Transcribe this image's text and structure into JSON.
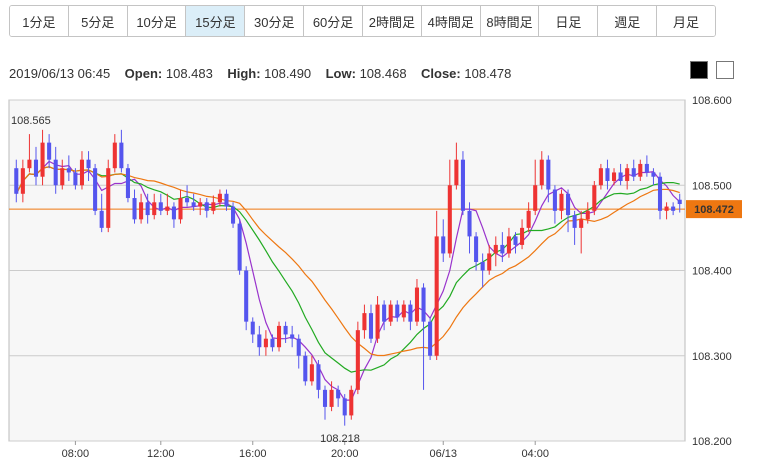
{
  "timeframes": {
    "items": [
      "1分足",
      "5分足",
      "10分足",
      "15分足",
      "30分足",
      "60分足",
      "2時間足",
      "4時間足",
      "8時間足",
      "日足",
      "週足",
      "月足"
    ],
    "active": 3
  },
  "ohlc": {
    "datetime": "2019/06/13 06:45",
    "open_label": "Open:",
    "open": "108.483",
    "high_label": "High:",
    "high": "108.490",
    "low_label": "Low:",
    "low": "108.468",
    "close_label": "Close:",
    "close": "108.478"
  },
  "colors": {
    "up": "#ee3333",
    "down": "#5555ee",
    "ma_fast": "#9933cc",
    "ma_mid": "#22aa22",
    "ma_slow": "#ee7711",
    "current": "#ee7711",
    "grid": "#cccccc",
    "plot_bg": "#f7f7f7"
  },
  "chart_data": {
    "type": "candlestick",
    "y_ticks": [
      108.6,
      108.5,
      108.4,
      108.3,
      108.2
    ],
    "y_tick_labels": [
      "108.600",
      "108.500",
      "108.400",
      "108.300",
      "108.200"
    ],
    "ylim": [
      108.2,
      108.6
    ],
    "x_tick_labels": [
      "08:00",
      "12:00",
      "16:00",
      "20:00",
      "06/13",
      "04:00"
    ],
    "max_label": "108.565",
    "min_label": "108.218",
    "current_price": 108.472,
    "current_price_label": "108.472",
    "candles": [
      [
        108.52,
        108.49,
        108.53,
        108.48
      ],
      [
        108.49,
        108.52,
        108.53,
        108.48
      ],
      [
        108.52,
        108.53,
        108.56,
        108.515
      ],
      [
        108.53,
        108.51,
        108.545,
        108.5
      ],
      [
        108.51,
        108.55,
        108.565,
        108.5
      ],
      [
        108.55,
        108.53,
        108.56,
        108.52
      ],
      [
        108.53,
        108.5,
        108.545,
        108.49
      ],
      [
        108.5,
        108.52,
        108.53,
        108.495
      ],
      [
        108.52,
        108.515,
        108.535,
        108.505
      ],
      [
        108.515,
        108.5,
        108.52,
        108.495
      ],
      [
        108.5,
        108.53,
        108.54,
        108.495
      ],
      [
        108.53,
        108.52,
        108.54,
        108.505
      ],
      [
        108.52,
        108.47,
        108.525,
        108.465
      ],
      [
        108.47,
        108.45,
        108.49,
        108.445
      ],
      [
        108.45,
        108.52,
        108.53,
        108.445
      ],
      [
        108.52,
        108.55,
        108.56,
        108.515
      ],
      [
        108.55,
        108.52,
        108.565,
        108.515
      ],
      [
        108.52,
        108.485,
        108.525,
        108.48
      ],
      [
        108.485,
        108.46,
        108.495,
        108.455
      ],
      [
        108.46,
        108.48,
        108.49,
        108.455
      ],
      [
        108.48,
        108.465,
        108.49,
        108.455
      ],
      [
        108.465,
        108.48,
        108.49,
        108.46
      ],
      [
        108.48,
        108.47,
        108.49,
        108.465
      ],
      [
        108.47,
        108.475,
        108.49,
        108.465
      ],
      [
        108.475,
        108.46,
        108.48,
        108.45
      ],
      [
        108.46,
        108.485,
        108.495,
        108.455
      ],
      [
        108.485,
        108.48,
        108.5,
        108.475
      ],
      [
        108.48,
        108.475,
        108.49,
        108.47
      ],
      [
        108.475,
        108.48,
        108.485,
        108.465
      ],
      [
        108.48,
        108.47,
        108.485,
        108.462
      ],
      [
        108.47,
        108.48,
        108.488,
        108.466
      ],
      [
        108.48,
        108.49,
        108.495,
        108.475
      ],
      [
        108.49,
        108.475,
        108.495,
        108.47
      ],
      [
        108.475,
        108.455,
        108.48,
        108.45
      ],
      [
        108.455,
        108.4,
        108.46,
        108.395
      ],
      [
        108.4,
        108.34,
        108.405,
        108.33
      ],
      [
        108.34,
        108.325,
        108.345,
        108.315
      ],
      [
        108.325,
        108.31,
        108.335,
        108.3
      ],
      [
        108.31,
        108.32,
        108.33,
        108.3
      ],
      [
        108.32,
        108.31,
        108.325,
        108.305
      ],
      [
        108.31,
        108.335,
        108.34,
        108.305
      ],
      [
        108.335,
        108.325,
        108.34,
        108.315
      ],
      [
        108.325,
        108.32,
        108.335,
        108.31
      ],
      [
        108.32,
        108.3,
        108.325,
        108.285
      ],
      [
        108.3,
        108.27,
        108.305,
        108.265
      ],
      [
        108.27,
        108.29,
        108.3,
        108.265
      ],
      [
        108.29,
        108.26,
        108.295,
        108.25
      ],
      [
        108.26,
        108.24,
        108.265,
        108.225
      ],
      [
        108.24,
        108.26,
        108.27,
        108.235
      ],
      [
        108.26,
        108.25,
        108.265,
        108.24
      ],
      [
        108.25,
        108.23,
        108.255,
        108.218
      ],
      [
        108.23,
        108.26,
        108.265,
        108.225
      ],
      [
        108.26,
        108.33,
        108.34,
        108.255
      ],
      [
        108.33,
        108.35,
        108.36,
        108.32
      ],
      [
        108.35,
        108.32,
        108.36,
        108.315
      ],
      [
        108.32,
        108.36,
        108.37,
        108.315
      ],
      [
        108.36,
        108.34,
        108.365,
        108.33
      ],
      [
        108.34,
        108.36,
        108.365,
        108.335
      ],
      [
        108.36,
        108.345,
        108.365,
        108.34
      ],
      [
        108.345,
        108.36,
        108.365,
        108.34
      ],
      [
        108.36,
        108.34,
        108.365,
        108.33
      ],
      [
        108.34,
        108.38,
        108.39,
        108.335
      ],
      [
        108.38,
        108.34,
        108.385,
        108.26
      ],
      [
        108.34,
        108.3,
        108.345,
        108.295
      ],
      [
        108.3,
        108.44,
        108.47,
        108.295
      ],
      [
        108.44,
        108.42,
        108.46,
        108.41
      ],
      [
        108.42,
        108.5,
        108.53,
        108.415
      ],
      [
        108.5,
        108.53,
        108.55,
        108.495
      ],
      [
        108.53,
        108.47,
        108.54,
        108.465
      ],
      [
        108.47,
        108.44,
        108.48,
        108.42
      ],
      [
        108.44,
        108.41,
        108.445,
        108.4
      ],
      [
        108.41,
        108.4,
        108.42,
        108.38
      ],
      [
        108.4,
        108.42,
        108.43,
        108.395
      ],
      [
        108.42,
        108.43,
        108.44,
        108.405
      ],
      [
        108.43,
        108.42,
        108.445,
        108.41
      ],
      [
        108.42,
        108.44,
        108.45,
        108.415
      ],
      [
        108.44,
        108.43,
        108.445,
        108.42
      ],
      [
        108.43,
        108.45,
        108.46,
        108.425
      ],
      [
        108.45,
        108.47,
        108.48,
        108.445
      ],
      [
        108.47,
        108.5,
        108.53,
        108.465
      ],
      [
        108.5,
        108.53,
        108.54,
        108.495
      ],
      [
        108.53,
        108.495,
        108.535,
        108.48
      ],
      [
        108.495,
        108.47,
        108.5,
        108.455
      ],
      [
        108.47,
        108.49,
        108.495,
        108.46
      ],
      [
        108.49,
        108.465,
        108.495,
        108.445
      ],
      [
        108.465,
        108.45,
        108.47,
        108.43
      ],
      [
        108.45,
        108.46,
        108.47,
        108.42
      ],
      [
        108.46,
        108.47,
        108.48,
        108.455
      ],
      [
        108.47,
        108.5,
        108.505,
        108.465
      ],
      [
        108.5,
        108.52,
        108.525,
        108.495
      ],
      [
        108.52,
        108.505,
        108.53,
        108.495
      ],
      [
        108.505,
        108.515,
        108.52,
        108.5
      ],
      [
        108.515,
        108.505,
        108.525,
        108.5
      ],
      [
        108.505,
        108.52,
        108.525,
        108.495
      ],
      [
        108.52,
        108.51,
        108.53,
        108.505
      ],
      [
        108.51,
        108.525,
        108.53,
        108.505
      ],
      [
        108.525,
        108.515,
        108.535,
        108.51
      ],
      [
        108.515,
        108.51,
        108.52,
        108.5
      ],
      [
        108.51,
        108.47,
        108.515,
        108.46
      ],
      [
        108.47,
        108.475,
        108.48,
        108.46
      ],
      [
        108.475,
        108.47,
        108.48,
        108.465
      ],
      [
        108.483,
        108.478,
        108.49,
        108.468
      ]
    ]
  }
}
